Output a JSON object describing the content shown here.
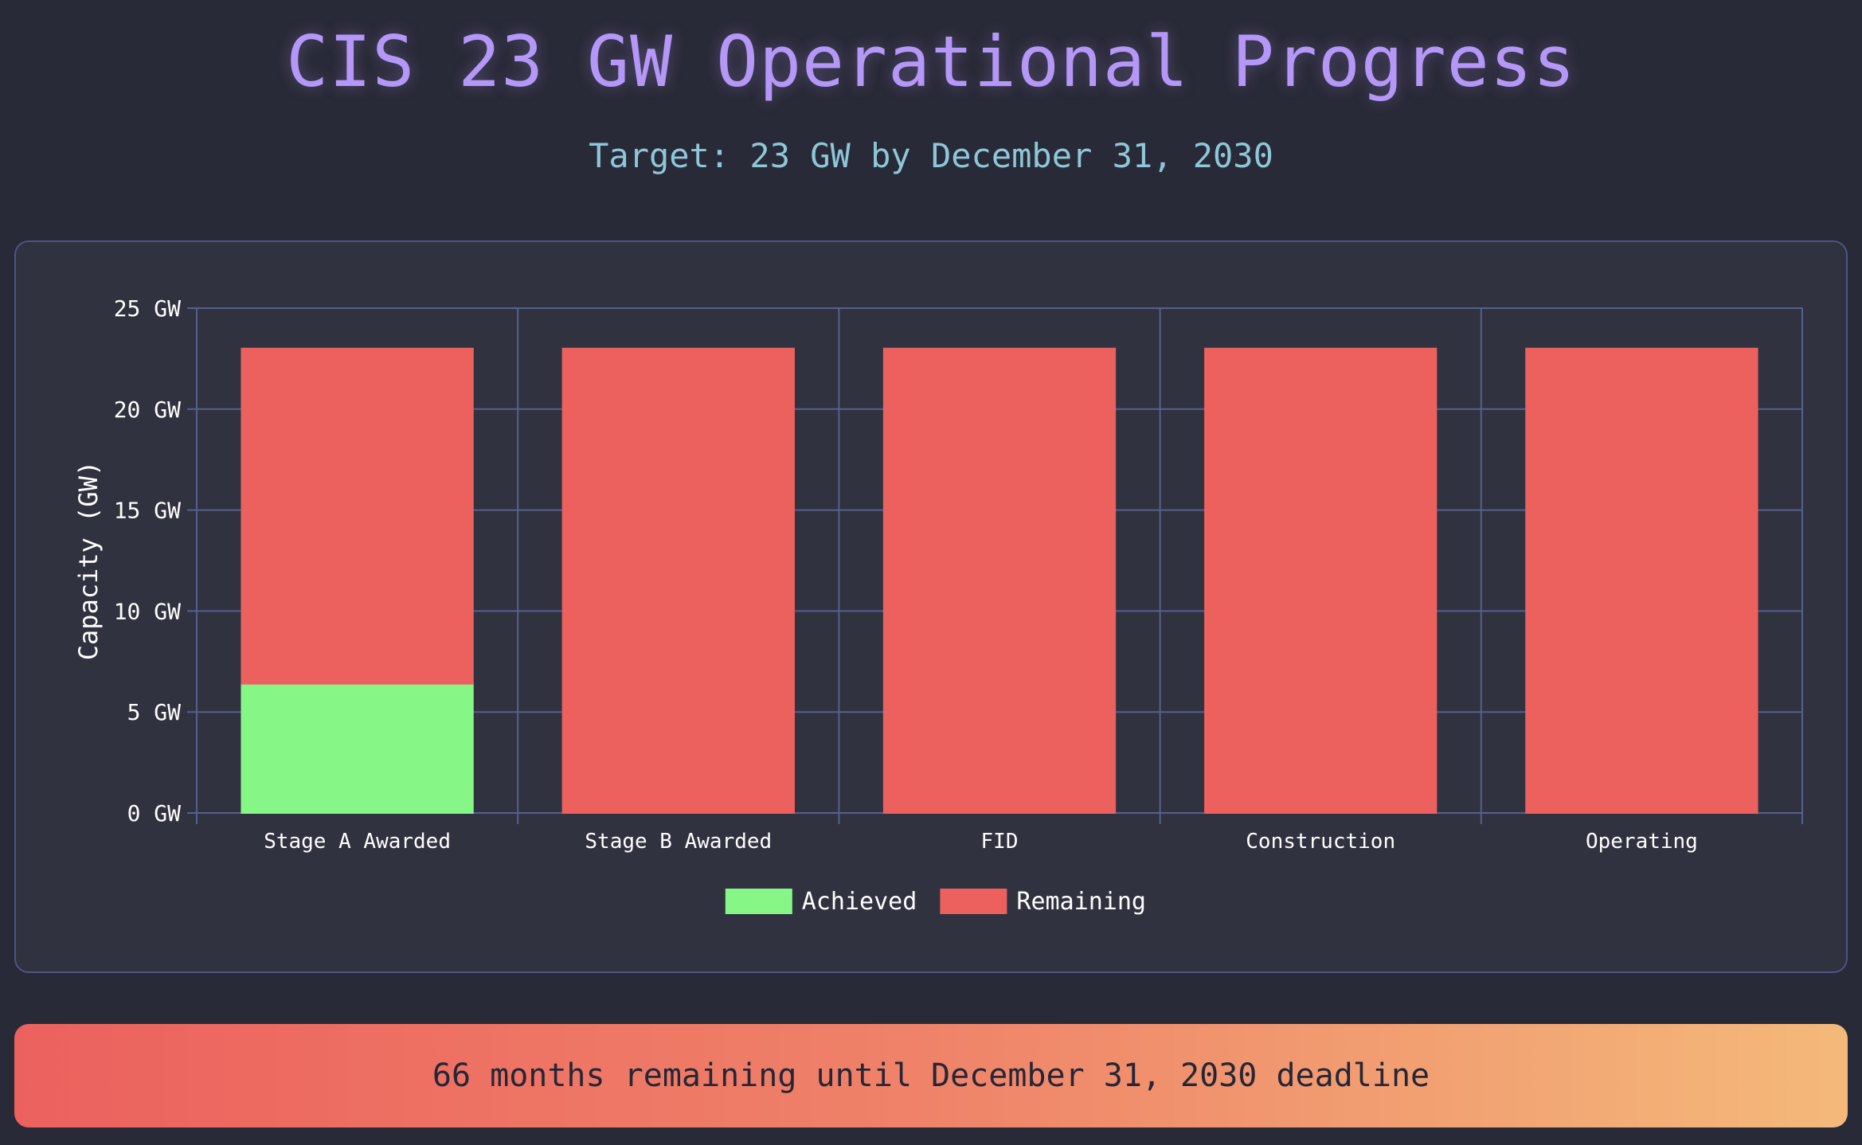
{
  "header": {
    "title": "CIS 23 GW Operational Progress",
    "subtitle": "Target: 23 GW by December 31, 2030"
  },
  "colors": {
    "achieved": "#86f787",
    "remaining": "#ec615e",
    "grid": "#55608e",
    "text": "#ffffff"
  },
  "chart_data": {
    "type": "bar",
    "stacked": true,
    "title": "",
    "xlabel": "",
    "ylabel": "Capacity (GW)",
    "ylim": [
      0,
      25
    ],
    "yticks": [
      0,
      5,
      10,
      15,
      20,
      25
    ],
    "ytick_labels": [
      "0 GW",
      "5 GW",
      "10 GW",
      "15 GW",
      "20 GW",
      "25 GW"
    ],
    "categories": [
      "Stage A Awarded",
      "Stage B Awarded",
      "FID",
      "Construction",
      "Operating"
    ],
    "series": [
      {
        "name": "Achieved",
        "values": [
          6.4,
          0,
          0,
          0,
          0
        ],
        "color": "#86f787"
      },
      {
        "name": "Remaining",
        "values": [
          16.6,
          23,
          23,
          23,
          23
        ],
        "color": "#ec615e"
      }
    ],
    "grid": true,
    "legend": "bottom"
  },
  "banner": {
    "text": "66 months remaining until December 31, 2030 deadline"
  }
}
